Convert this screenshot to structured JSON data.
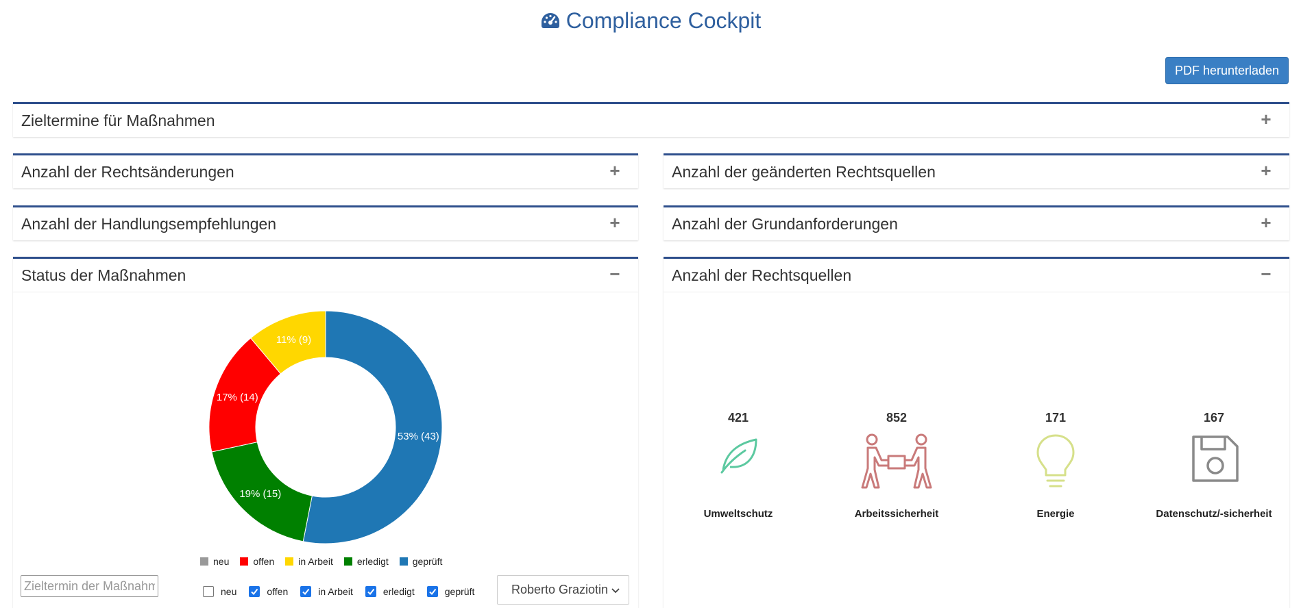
{
  "header": {
    "title": "Compliance Cockpit",
    "title_icon": "dashboard-gauge-icon",
    "pdf_button": "PDF herunterladen"
  },
  "panels": {
    "zieltermine": {
      "title": "Zieltermine für Maßnahmen",
      "toggle": "+"
    },
    "rechtsaenderungen": {
      "title": "Anzahl der Rechtsänderungen",
      "toggle": "+"
    },
    "geaenderte_rechtsquellen": {
      "title": "Anzahl der geänderten Rechtsquellen",
      "toggle": "+"
    },
    "handlungsempfehlungen": {
      "title": "Anzahl der Handlungsempfehlungen",
      "toggle": "+"
    },
    "grundanforderungen": {
      "title": "Anzahl der Grundanforderungen",
      "toggle": "+"
    },
    "status_massnahmen": {
      "title": "Status der Maßnahmen",
      "toggle": "−"
    },
    "rechtsquellen": {
      "title": "Anzahl der Rechtsquellen",
      "toggle": "−"
    }
  },
  "chart_data": {
    "type": "pie",
    "donut": true,
    "categories": [
      "neu",
      "offen",
      "in Arbeit",
      "erledigt",
      "geprüft"
    ],
    "values": [
      0,
      14,
      9,
      15,
      43
    ],
    "labels": [
      "",
      "17% (14)",
      "11% (9)",
      "19% (15)",
      "53% (43)"
    ],
    "colors": [
      "#999999",
      "#ff0000",
      "#ffd700",
      "#008000",
      "#1f77b4"
    ],
    "legend_position": "bottom",
    "legend_labels": [
      "neu",
      "offen",
      "in Arbeit",
      "erledigt",
      "geprüft"
    ]
  },
  "filters": {
    "date_placeholder": "Zieltermin der Maßnahme",
    "checkboxes": [
      {
        "label": "neu",
        "checked": false
      },
      {
        "label": "offen",
        "checked": true
      },
      {
        "label": "in Arbeit",
        "checked": true
      },
      {
        "label": "erledigt",
        "checked": true
      },
      {
        "label": "geprüft",
        "checked": true
      }
    ],
    "person_select": "Roberto Graziotin"
  },
  "rechtsquellen_stats": [
    {
      "value": "421",
      "label": "Umweltschutz",
      "icon": "leaf-icon",
      "color": "#5cc9a0"
    },
    {
      "value": "852",
      "label": "Arbeitssicherheit",
      "icon": "people-carrying-box-icon",
      "color": "#c97a7a"
    },
    {
      "value": "171",
      "label": "Energie",
      "icon": "lightbulb-icon",
      "color": "#d6e08a"
    },
    {
      "value": "167",
      "label": "Datenschutz/-sicherheit",
      "icon": "floppy-disk-icon",
      "color": "#8a8a8a"
    }
  ]
}
